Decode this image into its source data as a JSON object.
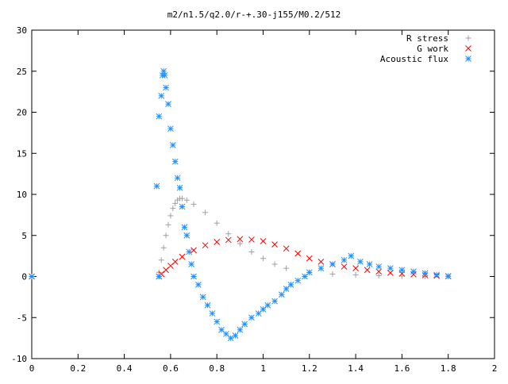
{
  "chart_data": {
    "type": "scatter",
    "title": "m2/n1.5/q2.0/r-+.30-j155/M0.2/512",
    "xlabel": "",
    "ylabel": "",
    "xlim": [
      0,
      2
    ],
    "ylim": [
      -10,
      30
    ],
    "x_ticks": [
      "0",
      "0.2",
      "0.4",
      "0.6",
      "0.8",
      "1",
      "1.2",
      "1.4",
      "1.6",
      "1.8",
      "2"
    ],
    "y_ticks": [
      "-10",
      "-5",
      "0",
      "5",
      "10",
      "15",
      "20",
      "25",
      "30"
    ],
    "grid": false,
    "legend_position": "top-right",
    "series": [
      {
        "name": "R stress",
        "marker": "plus",
        "color": "#a0a0a0",
        "points": [
          [
            0.0,
            0
          ],
          [
            0.55,
            0
          ],
          [
            0.55,
            0.5
          ],
          [
            0.56,
            2.0
          ],
          [
            0.57,
            3.5
          ],
          [
            0.58,
            5.0
          ],
          [
            0.59,
            6.3
          ],
          [
            0.6,
            7.4
          ],
          [
            0.61,
            8.3
          ],
          [
            0.62,
            8.9
          ],
          [
            0.63,
            9.3
          ],
          [
            0.64,
            9.5
          ],
          [
            0.65,
            9.5
          ],
          [
            0.67,
            9.3
          ],
          [
            0.7,
            8.8
          ],
          [
            0.75,
            7.8
          ],
          [
            0.8,
            6.5
          ],
          [
            0.85,
            5.2
          ],
          [
            0.9,
            4.0
          ],
          [
            0.95,
            3.0
          ],
          [
            1.0,
            2.2
          ],
          [
            1.05,
            1.5
          ],
          [
            1.1,
            1.0
          ],
          [
            1.2,
            0.5
          ],
          [
            1.3,
            0.3
          ],
          [
            1.4,
            0.2
          ],
          [
            1.5,
            0.1
          ],
          [
            1.6,
            0.05
          ],
          [
            1.7,
            0.02
          ],
          [
            1.8,
            0.0
          ]
        ]
      },
      {
        "name": "G work",
        "marker": "cross",
        "color": "#ff0000",
        "points": [
          [
            0.0,
            0
          ],
          [
            0.55,
            0
          ],
          [
            0.56,
            0.3
          ],
          [
            0.58,
            0.8
          ],
          [
            0.6,
            1.3
          ],
          [
            0.62,
            1.8
          ],
          [
            0.65,
            2.4
          ],
          [
            0.7,
            3.2
          ],
          [
            0.75,
            3.8
          ],
          [
            0.8,
            4.2
          ],
          [
            0.85,
            4.45
          ],
          [
            0.9,
            4.55
          ],
          [
            0.95,
            4.5
          ],
          [
            1.0,
            4.3
          ],
          [
            1.05,
            3.9
          ],
          [
            1.1,
            3.4
          ],
          [
            1.15,
            2.8
          ],
          [
            1.2,
            2.2
          ],
          [
            1.25,
            1.8
          ],
          [
            1.3,
            1.5
          ],
          [
            1.35,
            1.2
          ],
          [
            1.4,
            1.0
          ],
          [
            1.45,
            0.8
          ],
          [
            1.5,
            0.6
          ],
          [
            1.55,
            0.45
          ],
          [
            1.6,
            0.35
          ],
          [
            1.65,
            0.25
          ],
          [
            1.7,
            0.15
          ],
          [
            1.75,
            0.08
          ],
          [
            1.8,
            0.02
          ]
        ]
      },
      {
        "name": "Acoustic flux",
        "marker": "star",
        "color": "#1e90ff",
        "points": [
          [
            0.0,
            0
          ],
          [
            0.55,
            0
          ],
          [
            0.54,
            11
          ],
          [
            0.55,
            19.5
          ],
          [
            0.56,
            22
          ],
          [
            0.565,
            24.5
          ],
          [
            0.57,
            25
          ],
          [
            0.575,
            24.5
          ],
          [
            0.58,
            23
          ],
          [
            0.59,
            21
          ],
          [
            0.6,
            18
          ],
          [
            0.61,
            16
          ],
          [
            0.62,
            14
          ],
          [
            0.63,
            12
          ],
          [
            0.64,
            10.8
          ],
          [
            0.65,
            8.5
          ],
          [
            0.66,
            6
          ],
          [
            0.67,
            5
          ],
          [
            0.68,
            3
          ],
          [
            0.69,
            1.5
          ],
          [
            0.7,
            0
          ],
          [
            0.72,
            -1
          ],
          [
            0.74,
            -2.5
          ],
          [
            0.76,
            -3.5
          ],
          [
            0.78,
            -4.5
          ],
          [
            0.8,
            -5.5
          ],
          [
            0.82,
            -6.5
          ],
          [
            0.84,
            -7
          ],
          [
            0.86,
            -7.5
          ],
          [
            0.88,
            -7.2
          ],
          [
            0.9,
            -6.5
          ],
          [
            0.92,
            -5.8
          ],
          [
            0.95,
            -5
          ],
          [
            0.98,
            -4.5
          ],
          [
            1.0,
            -4
          ],
          [
            1.02,
            -3.5
          ],
          [
            1.05,
            -3
          ],
          [
            1.08,
            -2.2
          ],
          [
            1.1,
            -1.5
          ],
          [
            1.12,
            -1
          ],
          [
            1.15,
            -0.5
          ],
          [
            1.18,
            0
          ],
          [
            1.2,
            0.5
          ],
          [
            1.25,
            1
          ],
          [
            1.3,
            1.5
          ],
          [
            1.35,
            2.0
          ],
          [
            1.38,
            2.5
          ],
          [
            1.42,
            1.8
          ],
          [
            1.46,
            1.5
          ],
          [
            1.5,
            1.2
          ],
          [
            1.55,
            1.0
          ],
          [
            1.6,
            0.8
          ],
          [
            1.65,
            0.6
          ],
          [
            1.7,
            0.4
          ],
          [
            1.75,
            0.2
          ],
          [
            1.8,
            0.05
          ]
        ]
      }
    ]
  }
}
